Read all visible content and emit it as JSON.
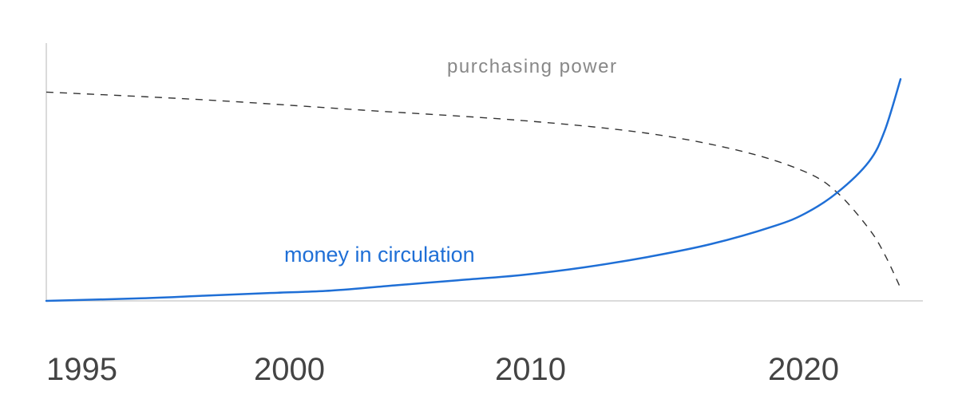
{
  "chart_data": {
    "type": "line",
    "title": "",
    "xlabel": "",
    "ylabel": "",
    "x_ticks": [
      1995,
      2000,
      2010,
      2020
    ],
    "xlim": [
      1995,
      2022
    ],
    "ylim": [
      0,
      100
    ],
    "grid": false,
    "series": [
      {
        "name": "money in circulation",
        "style": "solid",
        "color": "#1f6fd6",
        "x": [
          1995,
          1998,
          2000,
          2002,
          2004,
          2006,
          2008,
          2010,
          2012,
          2014,
          2016,
          2018,
          2019,
          2020,
          2021,
          2021.5,
          2022
        ],
        "y": [
          0,
          1,
          2,
          3,
          4,
          6,
          8,
          10,
          13,
          17,
          22,
          29,
          34,
          42,
          54,
          66,
          86
        ]
      },
      {
        "name": "purchasing power",
        "style": "dashed",
        "color": "#333333",
        "x": [
          1995,
          2000,
          2005,
          2010,
          2014,
          2017,
          2019,
          2020,
          2021,
          2021.5,
          2022
        ],
        "y": [
          81,
          78,
          74,
          70,
          65,
          58,
          50,
          42,
          28,
          18,
          5
        ]
      }
    ],
    "label_color": "#888888"
  }
}
